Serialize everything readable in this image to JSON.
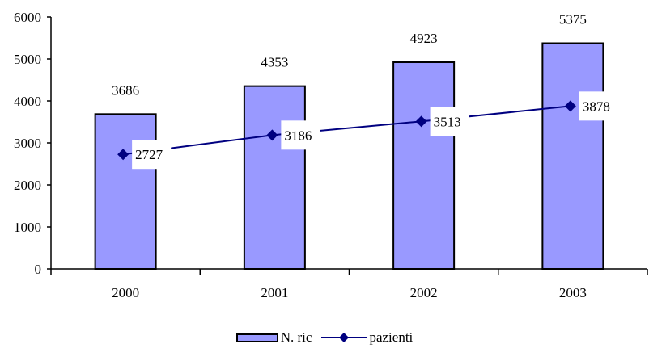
{
  "colors": {
    "bar_fill": "#9999ff",
    "bar_stroke": "#000000",
    "line": "#000080",
    "label_box": "#ffffff"
  },
  "chart_data": {
    "type": "bar",
    "categories": [
      "2000",
      "2001",
      "2002",
      "2003"
    ],
    "series": [
      {
        "name": "N. ric",
        "type": "bar",
        "values": [
          3686,
          4353,
          4923,
          5375
        ]
      },
      {
        "name": "pazienti",
        "type": "line",
        "marker": "diamond",
        "values": [
          2727,
          3186,
          3513,
          3878
        ]
      }
    ],
    "ylim": [
      0,
      6000
    ],
    "yticks": [
      "0",
      "1000",
      "2000",
      "3000",
      "4000",
      "5000",
      "6000"
    ],
    "grid": false,
    "legend_position": "bottom-center",
    "title": "",
    "xlabel": "",
    "ylabel": ""
  }
}
